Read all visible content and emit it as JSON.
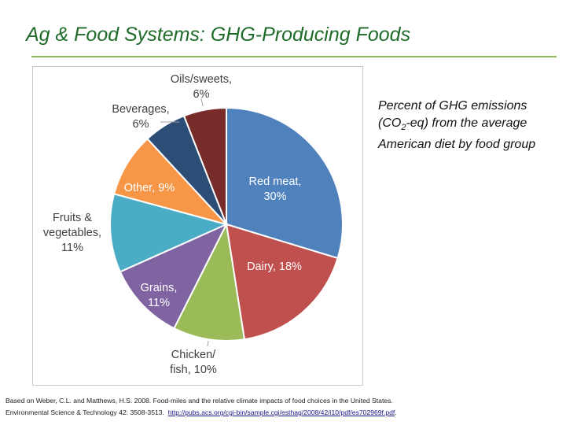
{
  "slide": {
    "title": "Ag & Food Systems: GHG-Producing Foods"
  },
  "note": {
    "before_sub": "Percent of GHG emissions (CO",
    "sub": "2",
    "after_sub": "-eq) from the average American diet by food group"
  },
  "citation": {
    "line1": "Based on Weber, C.L. and Matthews, H.S. 2008. Food-miles and the relative climate impacts of food choices in the United States.",
    "line2": "Environmental Science & Technology 42: 3508-3513.",
    "link": "http://pubs.acs.org/cgi-bin/sample.cgi/esthag/2008/42/i10/pdf/es702969f.pdf",
    "tail": "."
  },
  "chart_data": {
    "type": "pie",
    "title": "",
    "unit": "%",
    "slices": [
      {
        "label": "Red meat",
        "value": 30,
        "color": "#4f81bd",
        "text": [
          "Red meat,",
          "30%"
        ],
        "text_color": "#ffffff"
      },
      {
        "label": "Dairy",
        "value": 18,
        "color": "#c0504d",
        "text": [
          "Dairy, 18%"
        ],
        "text_color": "#ffffff"
      },
      {
        "label": "Chicken/fish",
        "value": 10,
        "color": "#9bbb59",
        "text": [
          "Chicken/",
          "fish, 10%"
        ],
        "text_color": "#404040"
      },
      {
        "label": "Grains",
        "value": 11,
        "color": "#8064a2",
        "text": [
          "Grains,",
          "11%"
        ],
        "text_color": "#ffffff"
      },
      {
        "label": "Fruits & vegetables",
        "value": 11,
        "color": "#4bacc6",
        "text": [
          "Fruits &",
          "vegetables,",
          "11%"
        ],
        "text_color": "#404040"
      },
      {
        "label": "Other",
        "value": 9,
        "color": "#f79646",
        "text": [
          "Other, 9%"
        ],
        "text_color": "#ffffff"
      },
      {
        "label": "Beverages",
        "value": 6,
        "color": "#2c4d75",
        "text": [
          "Beverages,",
          "6%"
        ],
        "text_color": "#404040"
      },
      {
        "label": "Oils/sweets",
        "value": 6,
        "color": "#772c2a",
        "text": [
          "Oils/sweets,",
          "6%"
        ],
        "text_color": "#404040"
      }
    ],
    "legend": "none",
    "label_placement": "inside and outside slices"
  }
}
